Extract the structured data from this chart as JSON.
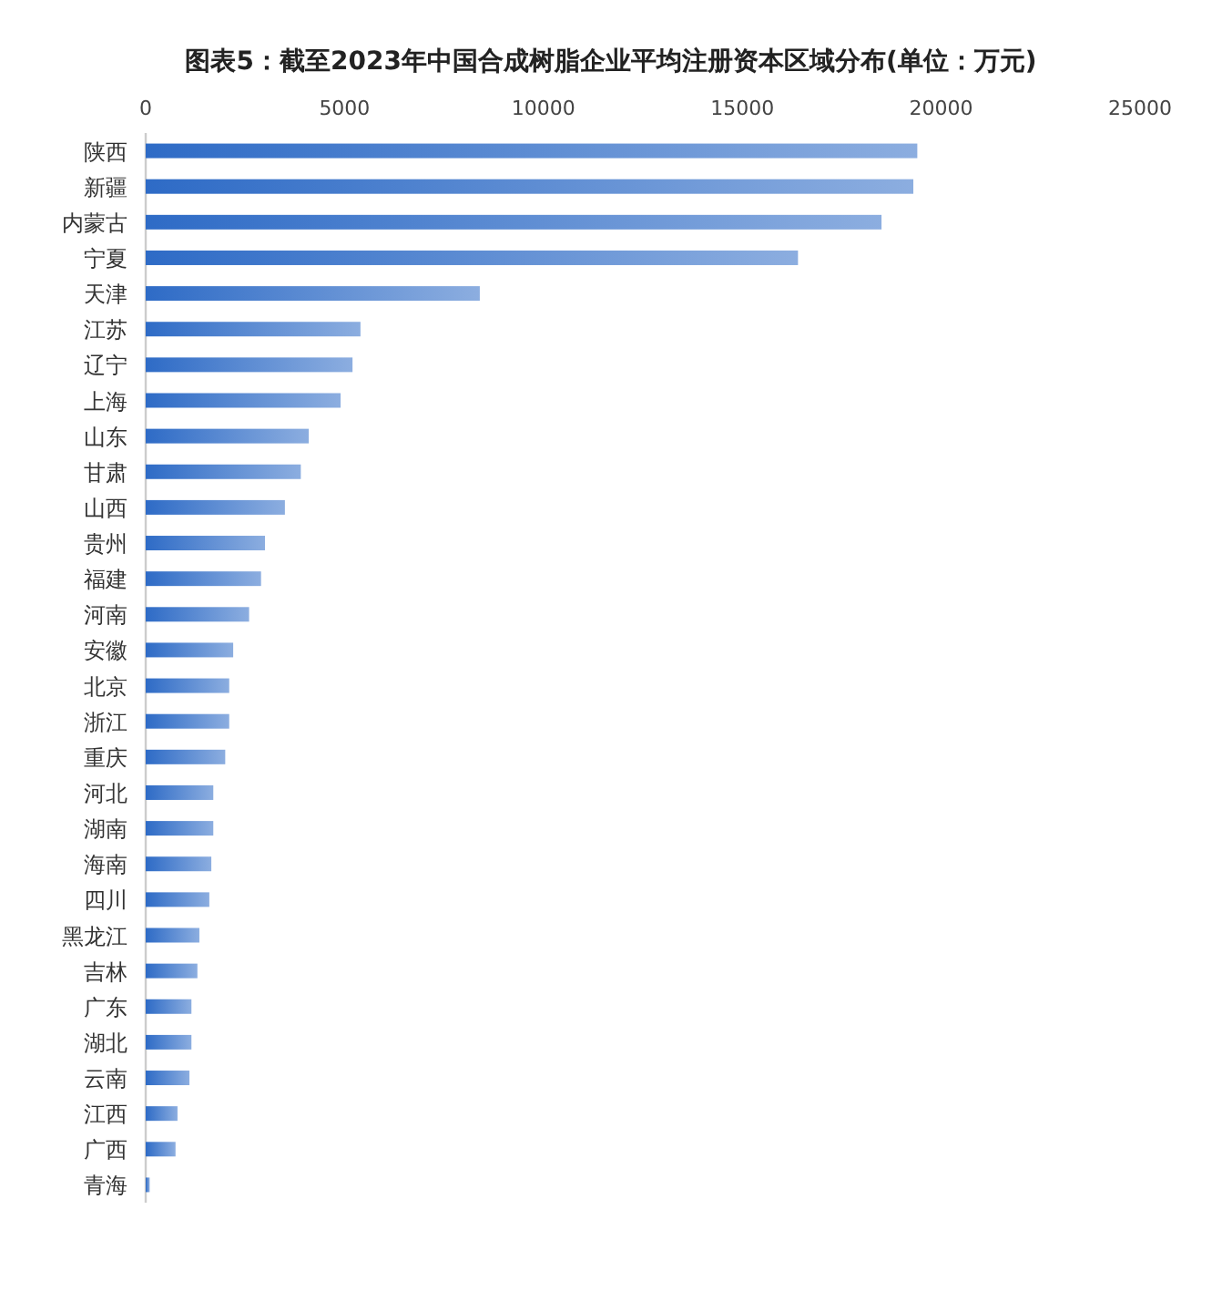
{
  "chart_data": {
    "type": "bar",
    "orientation": "horizontal",
    "title": "图表5：截至2023年中国合成树脂企业平均注册资本区域分布(单位：万元)",
    "categories": [
      "陕西",
      "新疆",
      "内蒙古",
      "宁夏",
      "天津",
      "江苏",
      "辽宁",
      "上海",
      "山东",
      "甘肃",
      "山西",
      "贵州",
      "福建",
      "河南",
      "安徽",
      "北京",
      "浙江",
      "重庆",
      "河北",
      "湖南",
      "海南",
      "四川",
      "黑龙江",
      "吉林",
      "广东",
      "湖北",
      "云南",
      "江西",
      "广西",
      "青海"
    ],
    "values": [
      19400,
      19300,
      18500,
      16400,
      8400,
      5400,
      5200,
      4900,
      4100,
      3900,
      3500,
      3000,
      2900,
      2600,
      2200,
      2100,
      2100,
      2000,
      1700,
      1700,
      1650,
      1600,
      1350,
      1300,
      1150,
      1150,
      1100,
      800,
      750,
      100
    ],
    "color": "#2e6bc6",
    "xlim": [
      0,
      25000
    ],
    "xticks": [
      0,
      5000,
      10000,
      15000,
      20000,
      25000
    ],
    "grid": false
  }
}
